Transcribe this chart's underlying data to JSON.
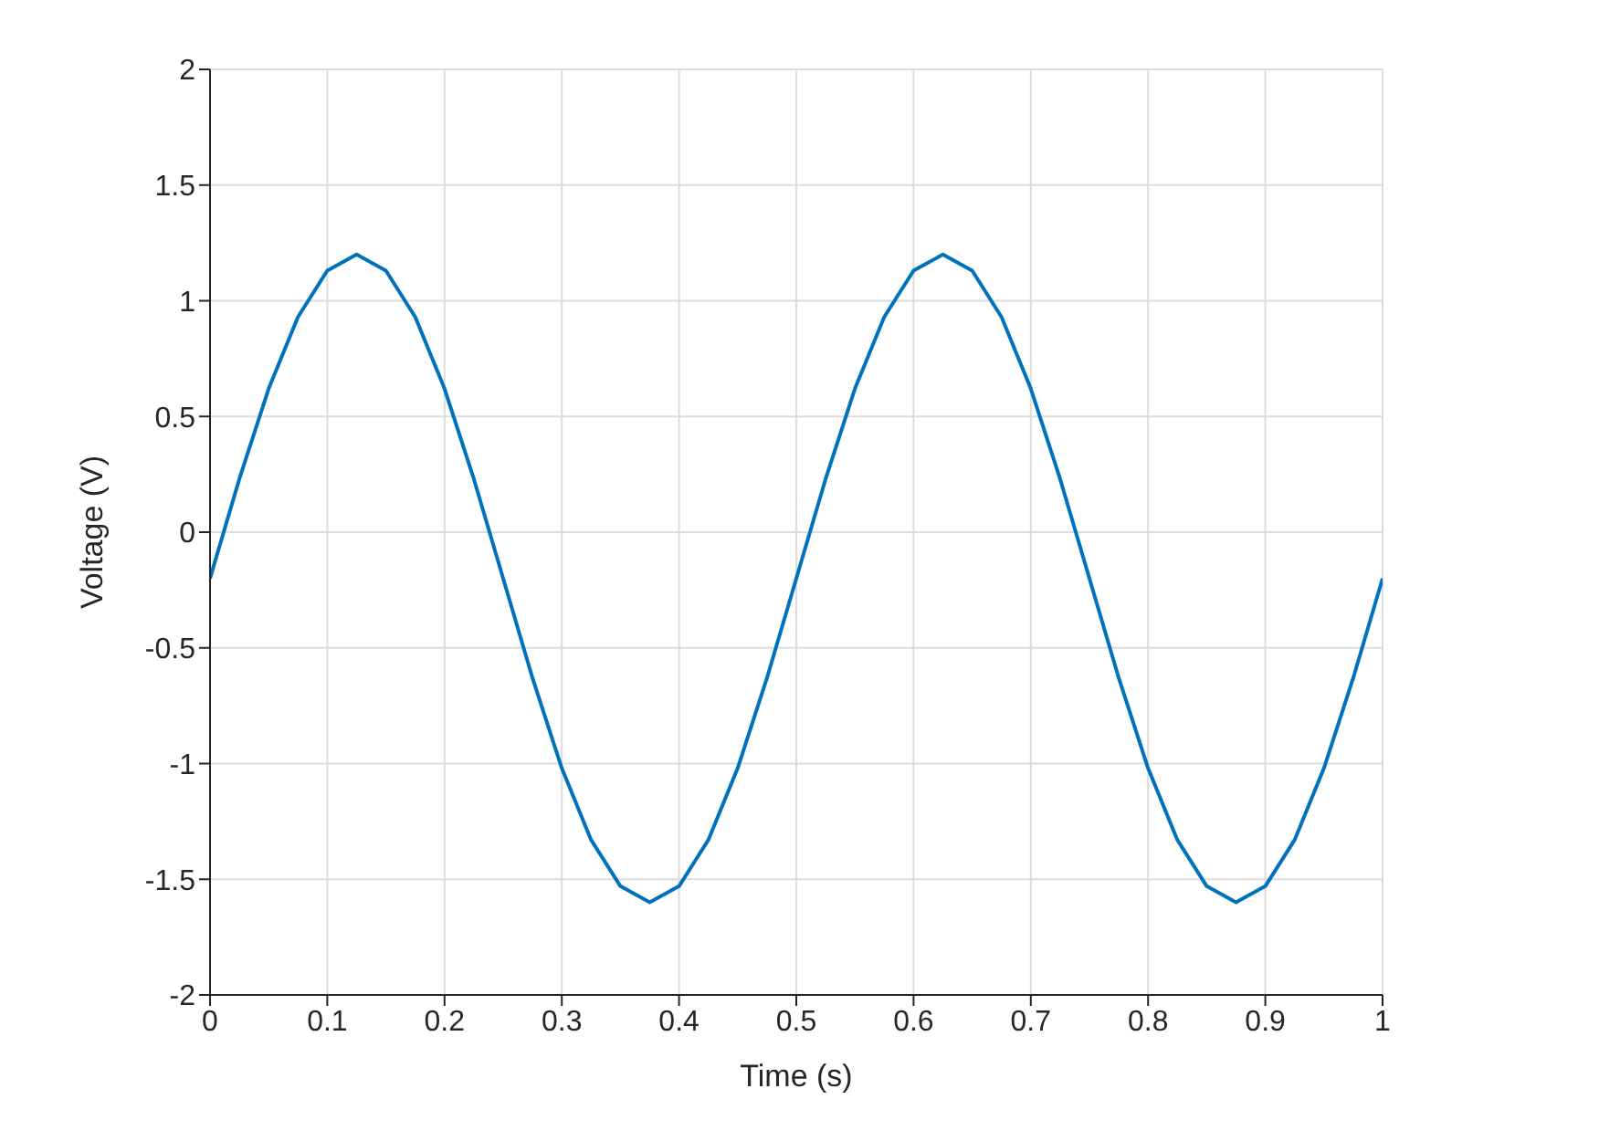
{
  "chart_data": {
    "type": "line",
    "xlabel": "Time (s)",
    "ylabel": "Voltage (V)",
    "x": [
      0,
      0.025,
      0.05,
      0.075,
      0.1,
      0.125,
      0.15,
      0.175,
      0.2,
      0.225,
      0.25,
      0.275,
      0.3,
      0.325,
      0.35,
      0.375,
      0.4,
      0.425,
      0.45,
      0.475,
      0.5,
      0.525,
      0.55,
      0.575,
      0.6,
      0.625,
      0.65,
      0.675,
      0.7,
      0.725,
      0.75,
      0.775,
      0.8,
      0.825,
      0.85,
      0.875,
      0.9,
      0.925,
      0.95,
      0.975,
      1
    ],
    "series": [
      {
        "color": "#0072bd",
        "values": [
          -0.2,
          0.23,
          0.62,
          0.93,
          1.13,
          1.2,
          1.13,
          0.93,
          0.62,
          0.23,
          -0.2,
          -0.63,
          -1.02,
          -1.33,
          -1.53,
          -1.6,
          -1.53,
          -1.33,
          -1.02,
          -0.63,
          -0.2,
          0.23,
          0.62,
          0.93,
          1.13,
          1.2,
          1.13,
          0.93,
          0.62,
          0.23,
          -0.2,
          -0.63,
          -1.02,
          -1.33,
          -1.53,
          -1.6,
          -1.53,
          -1.33,
          -1.02,
          -0.63,
          -0.2
        ]
      }
    ],
    "xlim": [
      0,
      1
    ],
    "xticks": [
      0,
      0.1,
      0.2,
      0.3,
      0.4,
      0.5,
      0.6,
      0.7,
      0.8,
      0.9,
      1
    ],
    "ylim": [
      -2,
      2
    ],
    "yticks": [
      -2,
      -1.5,
      -1,
      -0.5,
      0,
      0.5,
      1,
      1.5,
      2
    ],
    "grid": true,
    "marker": "none",
    "line_style": "solid"
  }
}
